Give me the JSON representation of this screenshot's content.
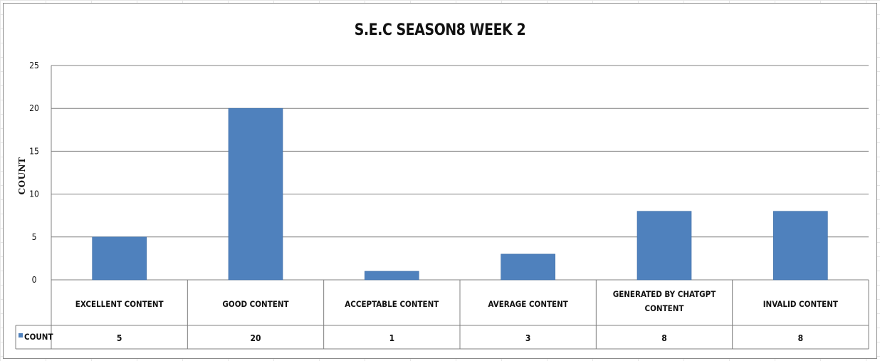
{
  "chart_data": {
    "type": "bar",
    "title": "S.E.C SEASON8 WEEK 2",
    "xlabel": "",
    "ylabel": "COUNT",
    "ylim": [
      0,
      25
    ],
    "yticks": [
      "0",
      "5",
      "10",
      "15",
      "20",
      "25"
    ],
    "categories": [
      "EXCELLENT CONTENT",
      "GOOD CONTENT",
      "ACCEPTABLE CONTENT",
      "AVERAGE CONTENT",
      "GENERATED BY CHATGPT CONTENT",
      "INVALID CONTENT"
    ],
    "series": [
      {
        "name": "COUNT",
        "values": [
          5,
          20,
          1,
          3,
          8,
          8
        ],
        "color": "#4f81bd"
      }
    ],
    "grid": true,
    "legend": "data-table",
    "data_table": true
  }
}
